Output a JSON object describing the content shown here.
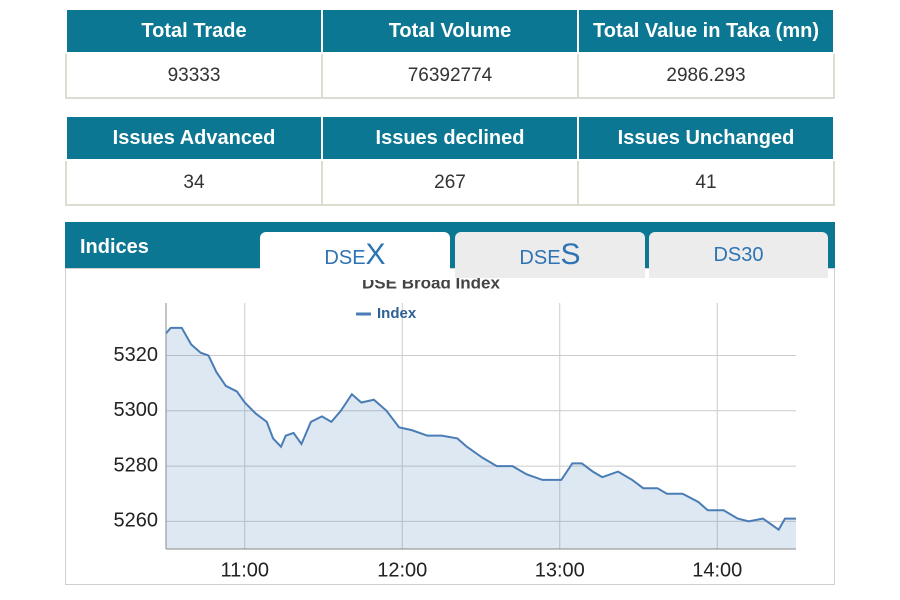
{
  "summary_table": {
    "headers": [
      "Total Trade",
      "Total Volume",
      "Total Value in Taka (mn)"
    ],
    "values": [
      93333,
      76392774,
      2986.293
    ]
  },
  "issues_table": {
    "headers": [
      "Issues Advanced",
      "Issues declined",
      "Issues Unchanged"
    ],
    "values": [
      34,
      267,
      41
    ]
  },
  "indices": {
    "title": "Indices",
    "tabs": [
      [
        "DSE",
        "X"
      ],
      [
        "DSE",
        "S"
      ],
      [
        "DS30"
      ]
    ]
  },
  "chart_data": {
    "type": "line",
    "title": "DSE Broad Index",
    "x": [
      10.5,
      10.53,
      10.6,
      10.66,
      10.72,
      10.77,
      10.82,
      10.88,
      10.95,
      11.0,
      11.07,
      11.14,
      11.18,
      11.23,
      11.26,
      11.31,
      11.36,
      11.42,
      11.49,
      11.55,
      11.61,
      11.68,
      11.74,
      11.82,
      11.9,
      11.98,
      12.06,
      12.16,
      12.25,
      12.35,
      12.41,
      12.51,
      12.6,
      12.7,
      12.79,
      12.89,
      13.01,
      13.08,
      13.14,
      13.21,
      13.27,
      13.37,
      13.46,
      13.53,
      13.62,
      13.68,
      13.78,
      13.88,
      13.94,
      14.04,
      14.13,
      14.2,
      14.29,
      14.39,
      14.43,
      14.5
    ],
    "series": [
      {
        "name": "Index",
        "color": "#4a7db5",
        "values": [
          5328,
          5330,
          5330,
          5324,
          5321,
          5320,
          5314,
          5309,
          5307,
          5303,
          5299,
          5296,
          5290,
          5287,
          5291,
          5292,
          5288,
          5296,
          5298,
          5296,
          5300,
          5306,
          5303,
          5304,
          5300,
          5294,
          5293,
          5291,
          5291,
          5290,
          5287,
          5283,
          5280,
          5280,
          5277,
          5275,
          5275,
          5281,
          5281,
          5278,
          5276,
          5278,
          5275,
          5272,
          5272,
          5270,
          5270,
          5267,
          5264,
          5264,
          5261,
          5260,
          5261,
          5257,
          5261,
          5261
        ]
      }
    ],
    "xlim": [
      10.5,
      14.5
    ],
    "xticks": [
      {
        "value": 11,
        "label": "11:00"
      },
      {
        "value": 12,
        "label": "12:00"
      },
      {
        "value": 13,
        "label": "13:00"
      },
      {
        "value": 14,
        "label": "14:00"
      }
    ],
    "ylim": [
      5250,
      5339
    ],
    "yticks": [
      5260,
      5280,
      5300,
      5320
    ],
    "grid": true,
    "area": true
  }
}
